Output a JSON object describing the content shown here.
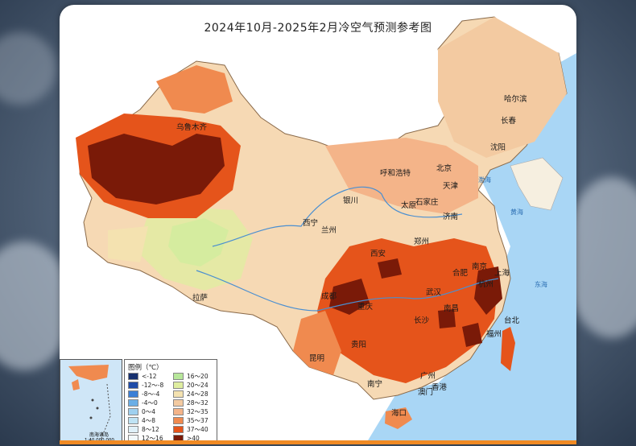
{
  "title": "2024年10月-2025年2月冷空气预测参考图",
  "colors": {
    "sea": "#a9d6f5",
    "land_base": "#f6d9b4",
    "c_28_32": "#f3caa1",
    "c_32_35": "#f4b489",
    "c_35_37": "#f08a4f",
    "c_37_40": "#e5541b",
    "c_gt40": "#7a1a08",
    "c_16_20": "#b7e79a",
    "c_20_24": "#dfeea0",
    "c_24_28": "#f4e2b0"
  },
  "cities": [
    {
      "id": "urumqi",
      "name": "乌鲁木齐"
    },
    {
      "id": "harbin",
      "name": "哈尔滨"
    },
    {
      "id": "changchun",
      "name": "长春"
    },
    {
      "id": "shenyang",
      "name": "沈阳"
    },
    {
      "id": "beijing",
      "name": "北京"
    },
    {
      "id": "tianjin",
      "name": "天津"
    },
    {
      "id": "hohhot",
      "name": "呼和浩特"
    },
    {
      "id": "yinchuan",
      "name": "银川"
    },
    {
      "id": "shijiazhuang",
      "name": "石家庄"
    },
    {
      "id": "taiyuan",
      "name": "太原"
    },
    {
      "id": "jinan",
      "name": "济南"
    },
    {
      "id": "xining",
      "name": "西宁"
    },
    {
      "id": "lanzhou",
      "name": "兰州"
    },
    {
      "id": "zhengzhou",
      "name": "郑州"
    },
    {
      "id": "xian",
      "name": "西安"
    },
    {
      "id": "nanjing",
      "name": "南京"
    },
    {
      "id": "hefei",
      "name": "合肥"
    },
    {
      "id": "shanghai",
      "name": "上海"
    },
    {
      "id": "chengdu",
      "name": "成都"
    },
    {
      "id": "wuhan",
      "name": "武汉"
    },
    {
      "id": "lhasa",
      "name": "拉萨"
    },
    {
      "id": "chongqing",
      "name": "重庆"
    },
    {
      "id": "nanchang",
      "name": "南昌"
    },
    {
      "id": "changsha",
      "name": "长沙"
    },
    {
      "id": "guiyang",
      "name": "贵阳"
    },
    {
      "id": "kunming",
      "name": "昆明"
    },
    {
      "id": "taipei",
      "name": "台北"
    },
    {
      "id": "fuzhou",
      "name": "福州"
    },
    {
      "id": "guangzhou",
      "name": "广州"
    },
    {
      "id": "nanning",
      "name": "南宁"
    },
    {
      "id": "macau",
      "name": "澳门"
    },
    {
      "id": "hongkong",
      "name": "香港"
    },
    {
      "id": "haikou",
      "name": "海口"
    },
    {
      "id": "hangzhou",
      "name": "杭州"
    }
  ],
  "sea_labels": {
    "bohai": "渤海",
    "yellow": "黄海",
    "east": "东海",
    "sea1": "海",
    "nanhai_islands": "南海诸岛"
  },
  "inset": {
    "title": "南海诸岛",
    "scale": "1:40 000 000"
  },
  "legend": {
    "title": "图例（℃）",
    "items": [
      {
        "label": "<-12",
        "color": "#17306e"
      },
      {
        "label": "-12～-8",
        "color": "#1f4ca8"
      },
      {
        "label": "-8～-4",
        "color": "#3b7fd6"
      },
      {
        "label": "-4～0",
        "color": "#6aaee6"
      },
      {
        "label": "0～4",
        "color": "#9fd0ef"
      },
      {
        "label": "4～8",
        "color": "#bfe3f4"
      },
      {
        "label": "8～12",
        "color": "#dff0f8"
      },
      {
        "label": "12～16",
        "color": "#f3f8fa"
      },
      {
        "label": "16～20",
        "color": "#b7e79a"
      },
      {
        "label": "20～24",
        "color": "#dfeea0"
      },
      {
        "label": "24～28",
        "color": "#f4e2b0"
      },
      {
        "label": "28～32",
        "color": "#f3caa1"
      },
      {
        "label": "32～35",
        "color": "#f4b489"
      },
      {
        "label": "35～37",
        "color": "#f08a4f"
      },
      {
        "label": "37～40",
        "color": "#e5541b"
      },
      {
        "label": ">40",
        "color": "#7a1a08"
      }
    ]
  }
}
